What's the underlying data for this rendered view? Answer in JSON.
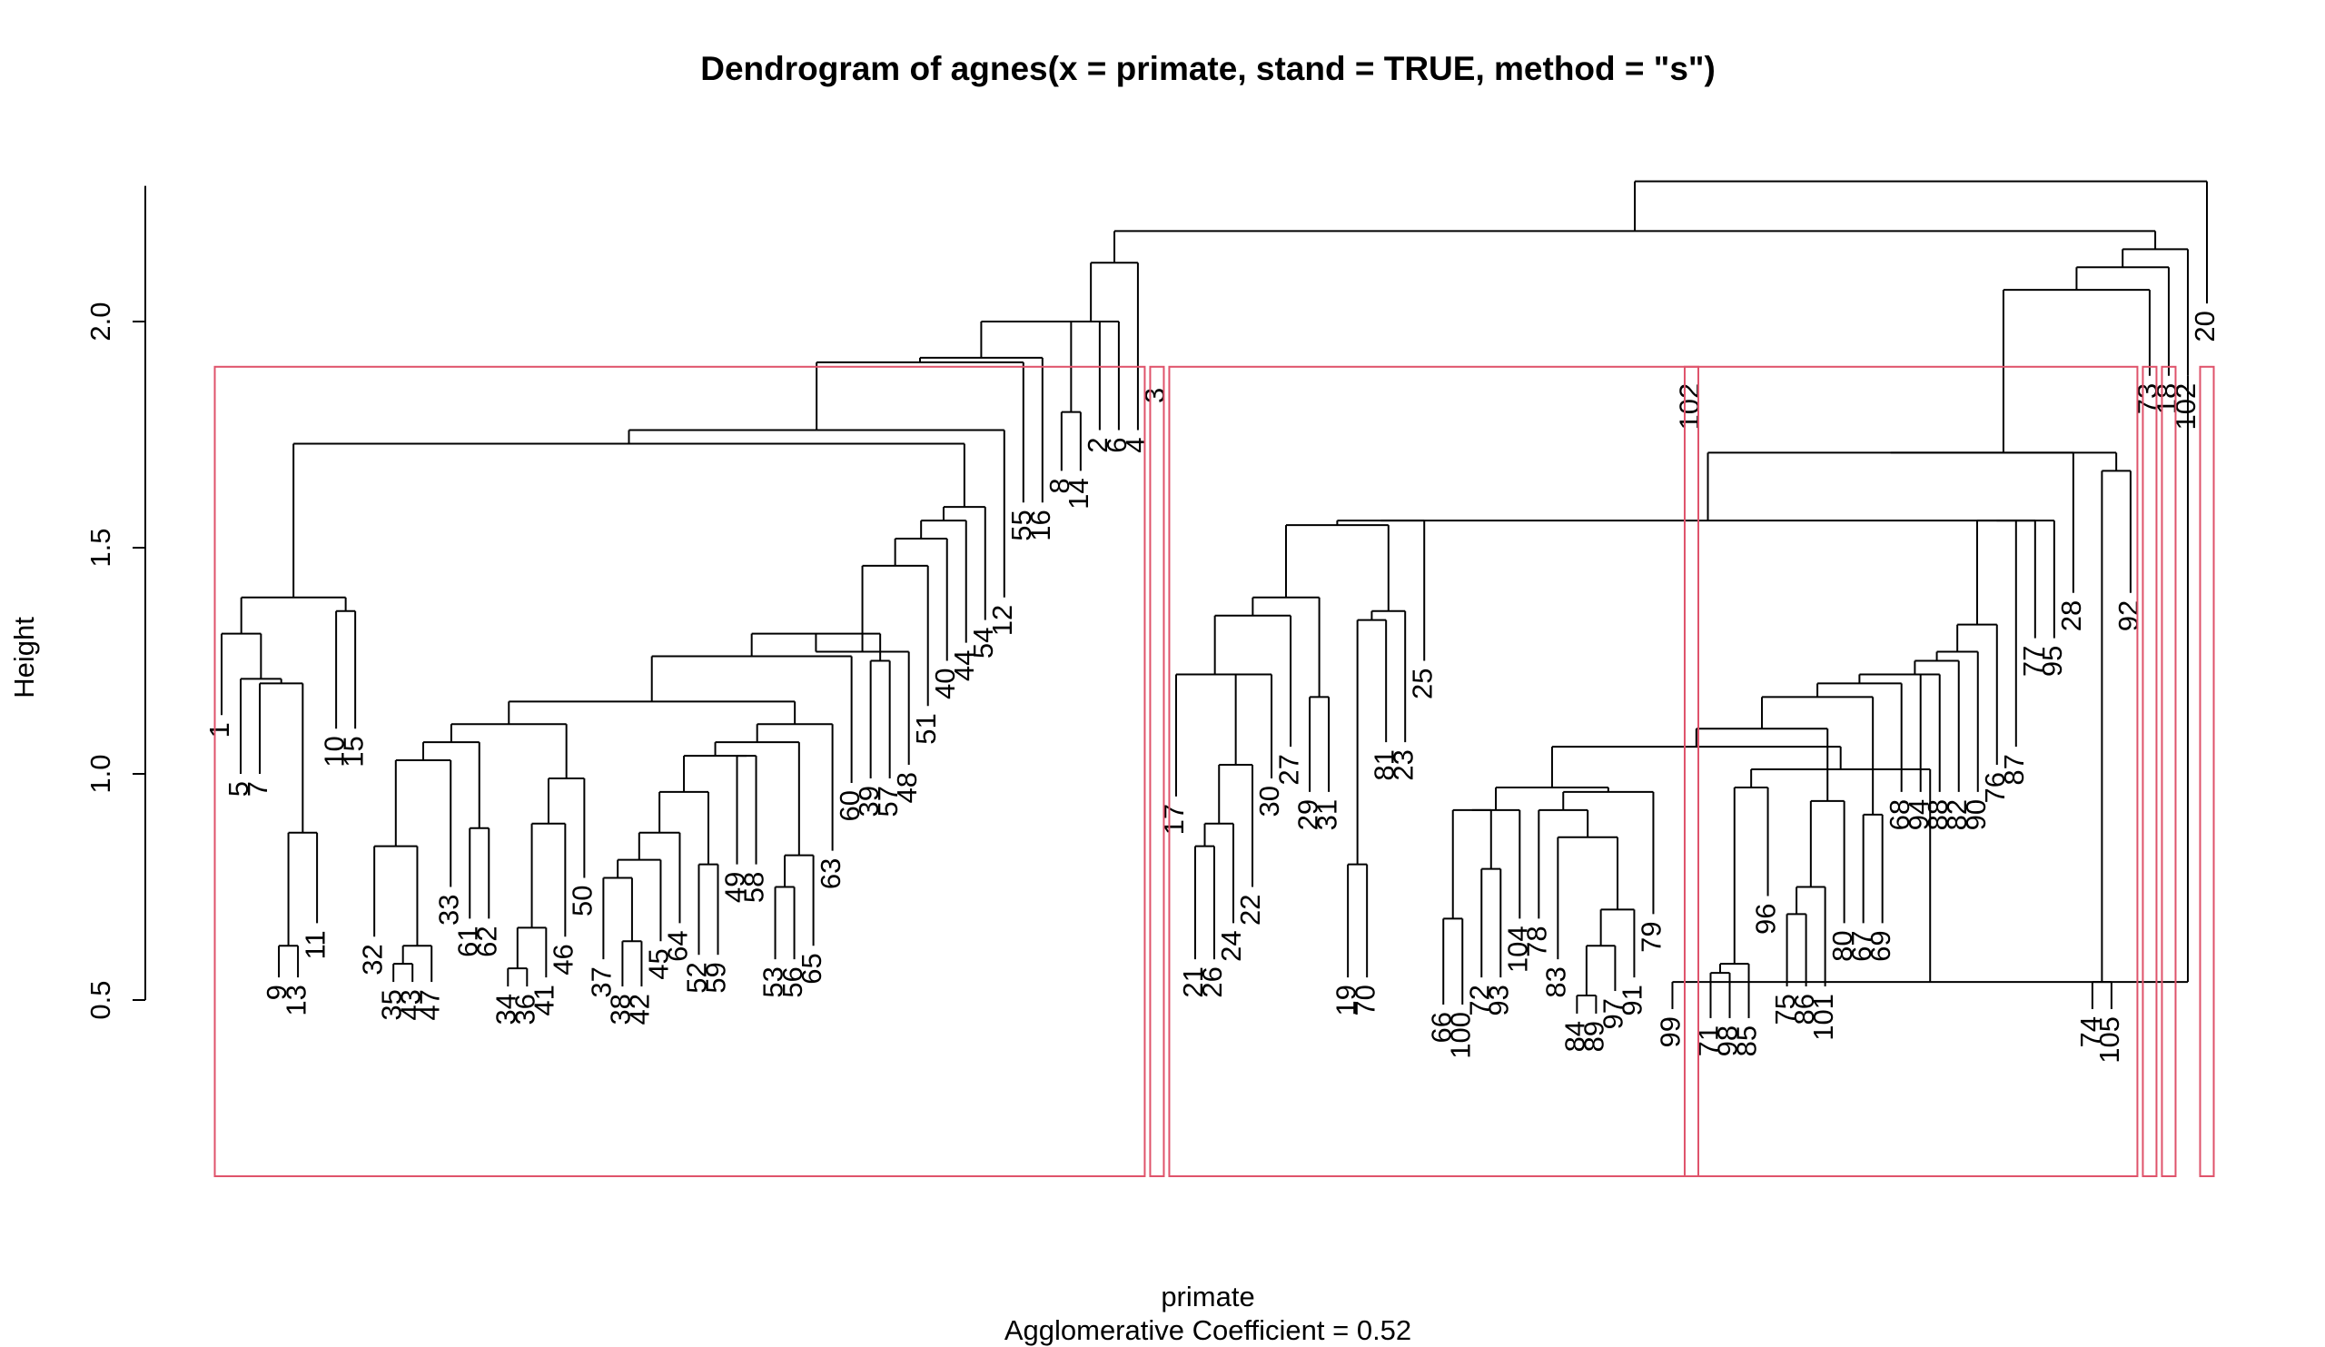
{
  "chart_data": {
    "type": "dendrogram",
    "title": "Dendrogram of  agnes(x = primate, stand = TRUE, method = \"s\")",
    "xlabel": "primate",
    "sublabel": "Agglomerative Coefficient =  0.52",
    "ylabel": "Height",
    "ylim": [
      0.5,
      2.3
    ],
    "yticks": [
      "0.5",
      "1.0",
      "1.5",
      "2.0"
    ],
    "cut_height": 1.9,
    "leaf_order": [
      1,
      5,
      7,
      9,
      13,
      11,
      10,
      15,
      32,
      35,
      43,
      47,
      33,
      61,
      62,
      34,
      36,
      41,
      46,
      50,
      37,
      38,
      42,
      45,
      64,
      52,
      59,
      49,
      58,
      53,
      56,
      65,
      63,
      60,
      39,
      57,
      48,
      51,
      40,
      44,
      54,
      12,
      55,
      16,
      8,
      14,
      2,
      6,
      4,
      3,
      17,
      21,
      26,
      24,
      22,
      30,
      27,
      29,
      31,
      19,
      70,
      81,
      23,
      25,
      66,
      100,
      72,
      93,
      104,
      78,
      83,
      84,
      89,
      97,
      91,
      79,
      99,
      102,
      71,
      98,
      85,
      96,
      75,
      86,
      101,
      80,
      67,
      69,
      68,
      94,
      88,
      82,
      90,
      76,
      87,
      77,
      95,
      28,
      74,
      105,
      92,
      73,
      18,
      102,
      20
    ],
    "leaf_heights": [
      1.13,
      1.0,
      1.0,
      0.55,
      0.55,
      0.67,
      1.1,
      1.1,
      0.64,
      0.54,
      0.54,
      0.54,
      0.75,
      0.68,
      0.68,
      0.53,
      0.53,
      0.55,
      0.64,
      0.77,
      0.59,
      0.53,
      0.53,
      0.63,
      0.67,
      0.6,
      0.6,
      0.8,
      0.8,
      0.59,
      0.59,
      0.62,
      0.83,
      0.98,
      0.99,
      0.99,
      1.02,
      1.15,
      1.25,
      1.29,
      1.34,
      1.39,
      1.6,
      1.6,
      1.67,
      1.67,
      1.76,
      1.76,
      1.76,
      1.87,
      0.95,
      0.59,
      0.59,
      0.67,
      0.75,
      0.99,
      1.06,
      0.96,
      0.96,
      0.55,
      0.55,
      1.07,
      1.07,
      1.25,
      0.49,
      0.49,
      0.55,
      0.55,
      0.68,
      0.68,
      0.59,
      0.47,
      0.47,
      0.52,
      0.55,
      0.69,
      0.48,
      0.48,
      0.46,
      0.46,
      0.46,
      0.73,
      0.53,
      0.53,
      0.53,
      0.67,
      0.67,
      0.67,
      0.96,
      0.96,
      0.96,
      0.96,
      0.96,
      1.02,
      1.06,
      1.3,
      1.3,
      1.4,
      0.48,
      0.48,
      1.4,
      1.88,
      1.88,
      1.88,
      2.04
    ],
    "merges": [
      {
        "height": 0.62,
        "children": [
          "9",
          "13"
        ]
      },
      {
        "height": 0.87,
        "children": [
          "m0",
          "11"
        ]
      },
      {
        "height": 1.2,
        "children": [
          "7",
          "m1"
        ]
      },
      {
        "height": 1.21,
        "children": [
          "5",
          "m2"
        ]
      },
      {
        "height": 1.31,
        "children": [
          "1",
          "m3"
        ]
      },
      {
        "height": 1.36,
        "children": [
          "10",
          "15"
        ]
      },
      {
        "height": 1.39,
        "children": [
          "m4",
          "m5"
        ]
      },
      {
        "height": 0.58,
        "children": [
          "35",
          "43"
        ]
      },
      {
        "height": 0.62,
        "children": [
          "m7",
          "47"
        ]
      },
      {
        "height": 0.84,
        "children": [
          "32",
          "m8"
        ]
      },
      {
        "height": 1.03,
        "children": [
          "m9",
          "33"
        ]
      },
      {
        "height": 0.88,
        "children": [
          "61",
          "62"
        ]
      },
      {
        "height": 1.07,
        "children": [
          "m10",
          "m11"
        ]
      },
      {
        "height": 0.57,
        "children": [
          "34",
          "36"
        ]
      },
      {
        "height": 0.66,
        "children": [
          "m13",
          "41"
        ]
      },
      {
        "height": 0.89,
        "children": [
          "m14",
          "46"
        ]
      },
      {
        "height": 0.99,
        "children": [
          "m15",
          "50"
        ]
      },
      {
        "height": 1.11,
        "children": [
          "m12",
          "m16"
        ]
      },
      {
        "height": 0.63,
        "children": [
          "38",
          "42"
        ]
      },
      {
        "height": 0.77,
        "children": [
          "37",
          "m18"
        ]
      },
      {
        "height": 0.81,
        "children": [
          "m19",
          "45"
        ]
      },
      {
        "height": 0.87,
        "children": [
          "m20",
          "64"
        ]
      },
      {
        "height": 0.8,
        "children": [
          "52",
          "59"
        ]
      },
      {
        "height": 0.96,
        "children": [
          "m21",
          "m22"
        ]
      },
      {
        "height": 1.04,
        "children": [
          "49",
          "58"
        ]
      },
      {
        "height": 1.04,
        "children": [
          "m23",
          "m24"
        ]
      },
      {
        "height": 0.75,
        "children": [
          "53",
          "56"
        ]
      },
      {
        "height": 0.82,
        "children": [
          "m26",
          "65"
        ]
      },
      {
        "height": 1.07,
        "children": [
          "m25",
          "m27"
        ]
      },
      {
        "height": 1.11,
        "children": [
          "m28",
          "63"
        ]
      },
      {
        "height": 1.16,
        "children": [
          "m17",
          "m29"
        ]
      },
      {
        "height": 1.26,
        "children": [
          "m30",
          "60"
        ]
      },
      {
        "height": 1.25,
        "children": [
          "39",
          "57"
        ]
      },
      {
        "height": 1.31,
        "children": [
          "m31",
          "m32"
        ]
      },
      {
        "height": 1.27,
        "children": [
          "m33",
          "48"
        ]
      },
      {
        "height": 1.46,
        "children": [
          "m34",
          "51"
        ]
      },
      {
        "height": 1.52,
        "children": [
          "m35",
          "40"
        ]
      },
      {
        "height": 1.56,
        "children": [
          "m36",
          "44"
        ]
      },
      {
        "height": 1.59,
        "children": [
          "m37",
          "54"
        ]
      },
      {
        "height": 1.73,
        "children": [
          "m6",
          "m38"
        ]
      },
      {
        "height": 1.76,
        "children": [
          "m39",
          "12"
        ]
      },
      {
        "height": 1.91,
        "children": [
          "m40",
          "55"
        ]
      },
      {
        "height": 1.92,
        "children": [
          "m41",
          "16"
        ]
      },
      {
        "height": 1.8,
        "children": [
          "8",
          "14"
        ]
      },
      {
        "height": 2.0,
        "children": [
          "m42",
          "m43"
        ]
      },
      {
        "height": 2.0,
        "children": [
          "m44",
          "2"
        ]
      },
      {
        "height": 2.0,
        "children": [
          "m45",
          "6"
        ]
      },
      {
        "height": 2.13,
        "children": [
          "m46",
          "4"
        ]
      },
      {
        "height": 0.84,
        "children": [
          "21",
          "26"
        ]
      },
      {
        "height": 0.89,
        "children": [
          "m48",
          "24"
        ]
      },
      {
        "height": 1.02,
        "children": [
          "m49",
          "22"
        ]
      },
      {
        "height": 1.22,
        "children": [
          "m50",
          "30"
        ]
      },
      {
        "height": 1.22,
        "children": [
          "17",
          "m51"
        ]
      },
      {
        "height": 1.35,
        "children": [
          "m52",
          "27"
        ]
      },
      {
        "height": 1.17,
        "children": [
          "29",
          "31"
        ]
      },
      {
        "height": 1.39,
        "children": [
          "m53",
          "m54"
        ]
      },
      {
        "height": 0.8,
        "children": [
          "19",
          "70"
        ]
      },
      {
        "height": 1.34,
        "children": [
          "m56",
          "81"
        ]
      },
      {
        "height": 1.36,
        "children": [
          "m57",
          "23"
        ]
      },
      {
        "height": 1.55,
        "children": [
          "m55",
          "m58"
        ]
      },
      {
        "height": 1.56,
        "children": [
          "m59",
          "25"
        ]
      },
      {
        "height": 0.68,
        "children": [
          "66",
          "100"
        ]
      },
      {
        "height": 0.79,
        "children": [
          "72",
          "93"
        ]
      },
      {
        "height": 0.92,
        "children": [
          "m61",
          "m62"
        ]
      },
      {
        "height": 0.92,
        "children": [
          "m63",
          "104"
        ]
      },
      {
        "height": 0.51,
        "children": [
          "84",
          "89"
        ]
      },
      {
        "height": 0.62,
        "children": [
          "m65",
          "97"
        ]
      },
      {
        "height": 0.7,
        "children": [
          "m66",
          "91"
        ]
      },
      {
        "height": 0.86,
        "children": [
          "83",
          "m67"
        ]
      },
      {
        "height": 0.92,
        "children": [
          "78",
          "m68"
        ]
      },
      {
        "height": 0.96,
        "children": [
          "m69",
          "79"
        ]
      },
      {
        "height": 0.97,
        "children": [
          "m64",
          "m70"
        ]
      },
      {
        "height": 0.54,
        "children": [
          "99",
          "102"
        ]
      },
      {
        "height": 0.56,
        "children": [
          "71",
          "98"
        ]
      },
      {
        "height": 0.58,
        "children": [
          "m73",
          "85"
        ]
      },
      {
        "height": 0.97,
        "children": [
          "m74",
          "96"
        ]
      },
      {
        "height": 1.01,
        "children": [
          "m72",
          "m75"
        ]
      },
      {
        "height": 1.06,
        "children": [
          "m71",
          "m76"
        ]
      },
      {
        "height": 0.69,
        "children": [
          "75",
          "86"
        ]
      },
      {
        "height": 0.75,
        "children": [
          "m78",
          "101"
        ]
      },
      {
        "height": 0.94,
        "children": [
          "m79",
          "80"
        ]
      },
      {
        "height": 1.1,
        "children": [
          "m77",
          "m80"
        ]
      },
      {
        "height": 0.91,
        "children": [
          "67",
          "69"
        ]
      },
      {
        "height": 1.17,
        "children": [
          "m81",
          "m82"
        ]
      },
      {
        "height": 1.2,
        "children": [
          "m83",
          "68"
        ]
      },
      {
        "height": 1.22,
        "children": [
          "m84",
          "94"
        ]
      },
      {
        "height": 1.22,
        "children": [
          "m85",
          "88"
        ]
      },
      {
        "height": 1.25,
        "children": [
          "m86",
          "82"
        ]
      },
      {
        "height": 1.27,
        "children": [
          "m87",
          "90"
        ]
      },
      {
        "height": 1.33,
        "children": [
          "m88",
          "76"
        ]
      },
      {
        "height": 1.56,
        "children": [
          "m89",
          "87"
        ]
      },
      {
        "height": 1.56,
        "children": [
          "m90",
          "77"
        ]
      },
      {
        "height": 1.56,
        "children": [
          "m91",
          "95"
        ]
      },
      {
        "height": 1.56,
        "children": [
          "m60",
          "m92"
        ]
      },
      {
        "height": 1.71,
        "children": [
          "m93",
          "28"
        ]
      },
      {
        "height": 0.54,
        "children": [
          "74",
          "105"
        ]
      },
      {
        "height": 1.67,
        "children": [
          "m95",
          "92"
        ]
      },
      {
        "height": 1.71,
        "children": [
          "m94",
          "m96"
        ]
      },
      {
        "height": 2.07,
        "children": [
          "m97",
          "73"
        ]
      },
      {
        "height": 2.12,
        "children": [
          "m98",
          "18"
        ]
      },
      {
        "height": 2.16,
        "children": [
          "m99",
          "102"
        ]
      },
      {
        "height": 2.2,
        "children": [
          "m47",
          "m100"
        ]
      },
      {
        "height": 2.31,
        "children": [
          "m101",
          "20"
        ]
      }
    ],
    "cut_groups": [
      [
        "1",
        "5",
        "7",
        "9",
        "13",
        "11",
        "10",
        "15",
        "32",
        "35",
        "43",
        "47",
        "33",
        "61",
        "62",
        "34",
        "36",
        "41",
        "46",
        "50",
        "37",
        "38",
        "42",
        "45",
        "64",
        "52",
        "59",
        "49",
        "58",
        "53",
        "56",
        "65",
        "63",
        "60",
        "39",
        "57",
        "48",
        "51",
        "40",
        "44",
        "54",
        "12",
        "55",
        "16",
        "8",
        "14",
        "2",
        "6",
        "4"
      ],
      [
        "3"
      ],
      [
        "17",
        "21",
        "26",
        "24",
        "22",
        "30",
        "27",
        "29",
        "31",
        "19",
        "70",
        "81",
        "23",
        "25",
        "66",
        "100",
        "72",
        "93",
        "104",
        "78",
        "83",
        "84",
        "89",
        "97",
        "91",
        "79",
        "99",
        "102",
        "71",
        "98",
        "85",
        "96",
        "75",
        "86",
        "101",
        "80",
        "67",
        "69",
        "68",
        "94",
        "88",
        "82",
        "90",
        "76",
        "87",
        "77",
        "95",
        "28",
        "74",
        "105",
        "92"
      ],
      [
        "73"
      ],
      [
        "18"
      ],
      [
        "102"
      ],
      [
        "20"
      ]
    ]
  },
  "colors": {
    "tree": "#000000",
    "rect": "#df536b",
    "axis": "#000000"
  }
}
